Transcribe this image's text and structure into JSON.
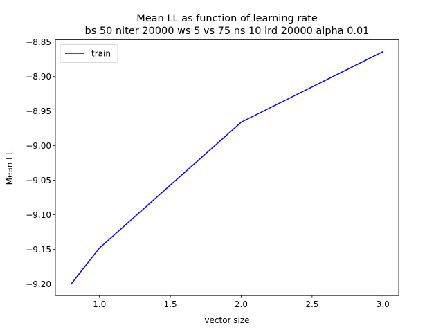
{
  "chart_data": {
    "type": "line",
    "title": "Mean LL as function of learning rate",
    "subtitle": "bs 50 niter 20000 ws 5 vs 75 ns 10 lrd 20000 alpha 0.01",
    "xlabel": "vector size",
    "ylabel": "Mean LL",
    "xlim": [
      0.689,
      3.111
    ],
    "ylim": [
      -9.2167,
      -8.8469
    ],
    "xticks": [
      1.0,
      1.5,
      2.0,
      2.5,
      3.0
    ],
    "xtick_labels": [
      "1.0",
      "1.5",
      "2.0",
      "2.5",
      "3.0"
    ],
    "yticks": [
      -8.85,
      -8.9,
      -8.95,
      -9.0,
      -9.05,
      -9.1,
      -9.15,
      -9.2
    ],
    "ytick_labels": [
      "−8.85",
      "−8.90",
      "−8.95",
      "−9.00",
      "−9.05",
      "−9.10",
      "−9.15",
      "−9.20"
    ],
    "grid": false,
    "legend_position": "top-left",
    "series": [
      {
        "name": "train",
        "color": "#0000ff",
        "x": [
          0.8,
          1.0,
          2.0,
          3.0
        ],
        "y": [
          -9.2,
          -9.148,
          -8.966,
          -8.864
        ]
      }
    ]
  }
}
